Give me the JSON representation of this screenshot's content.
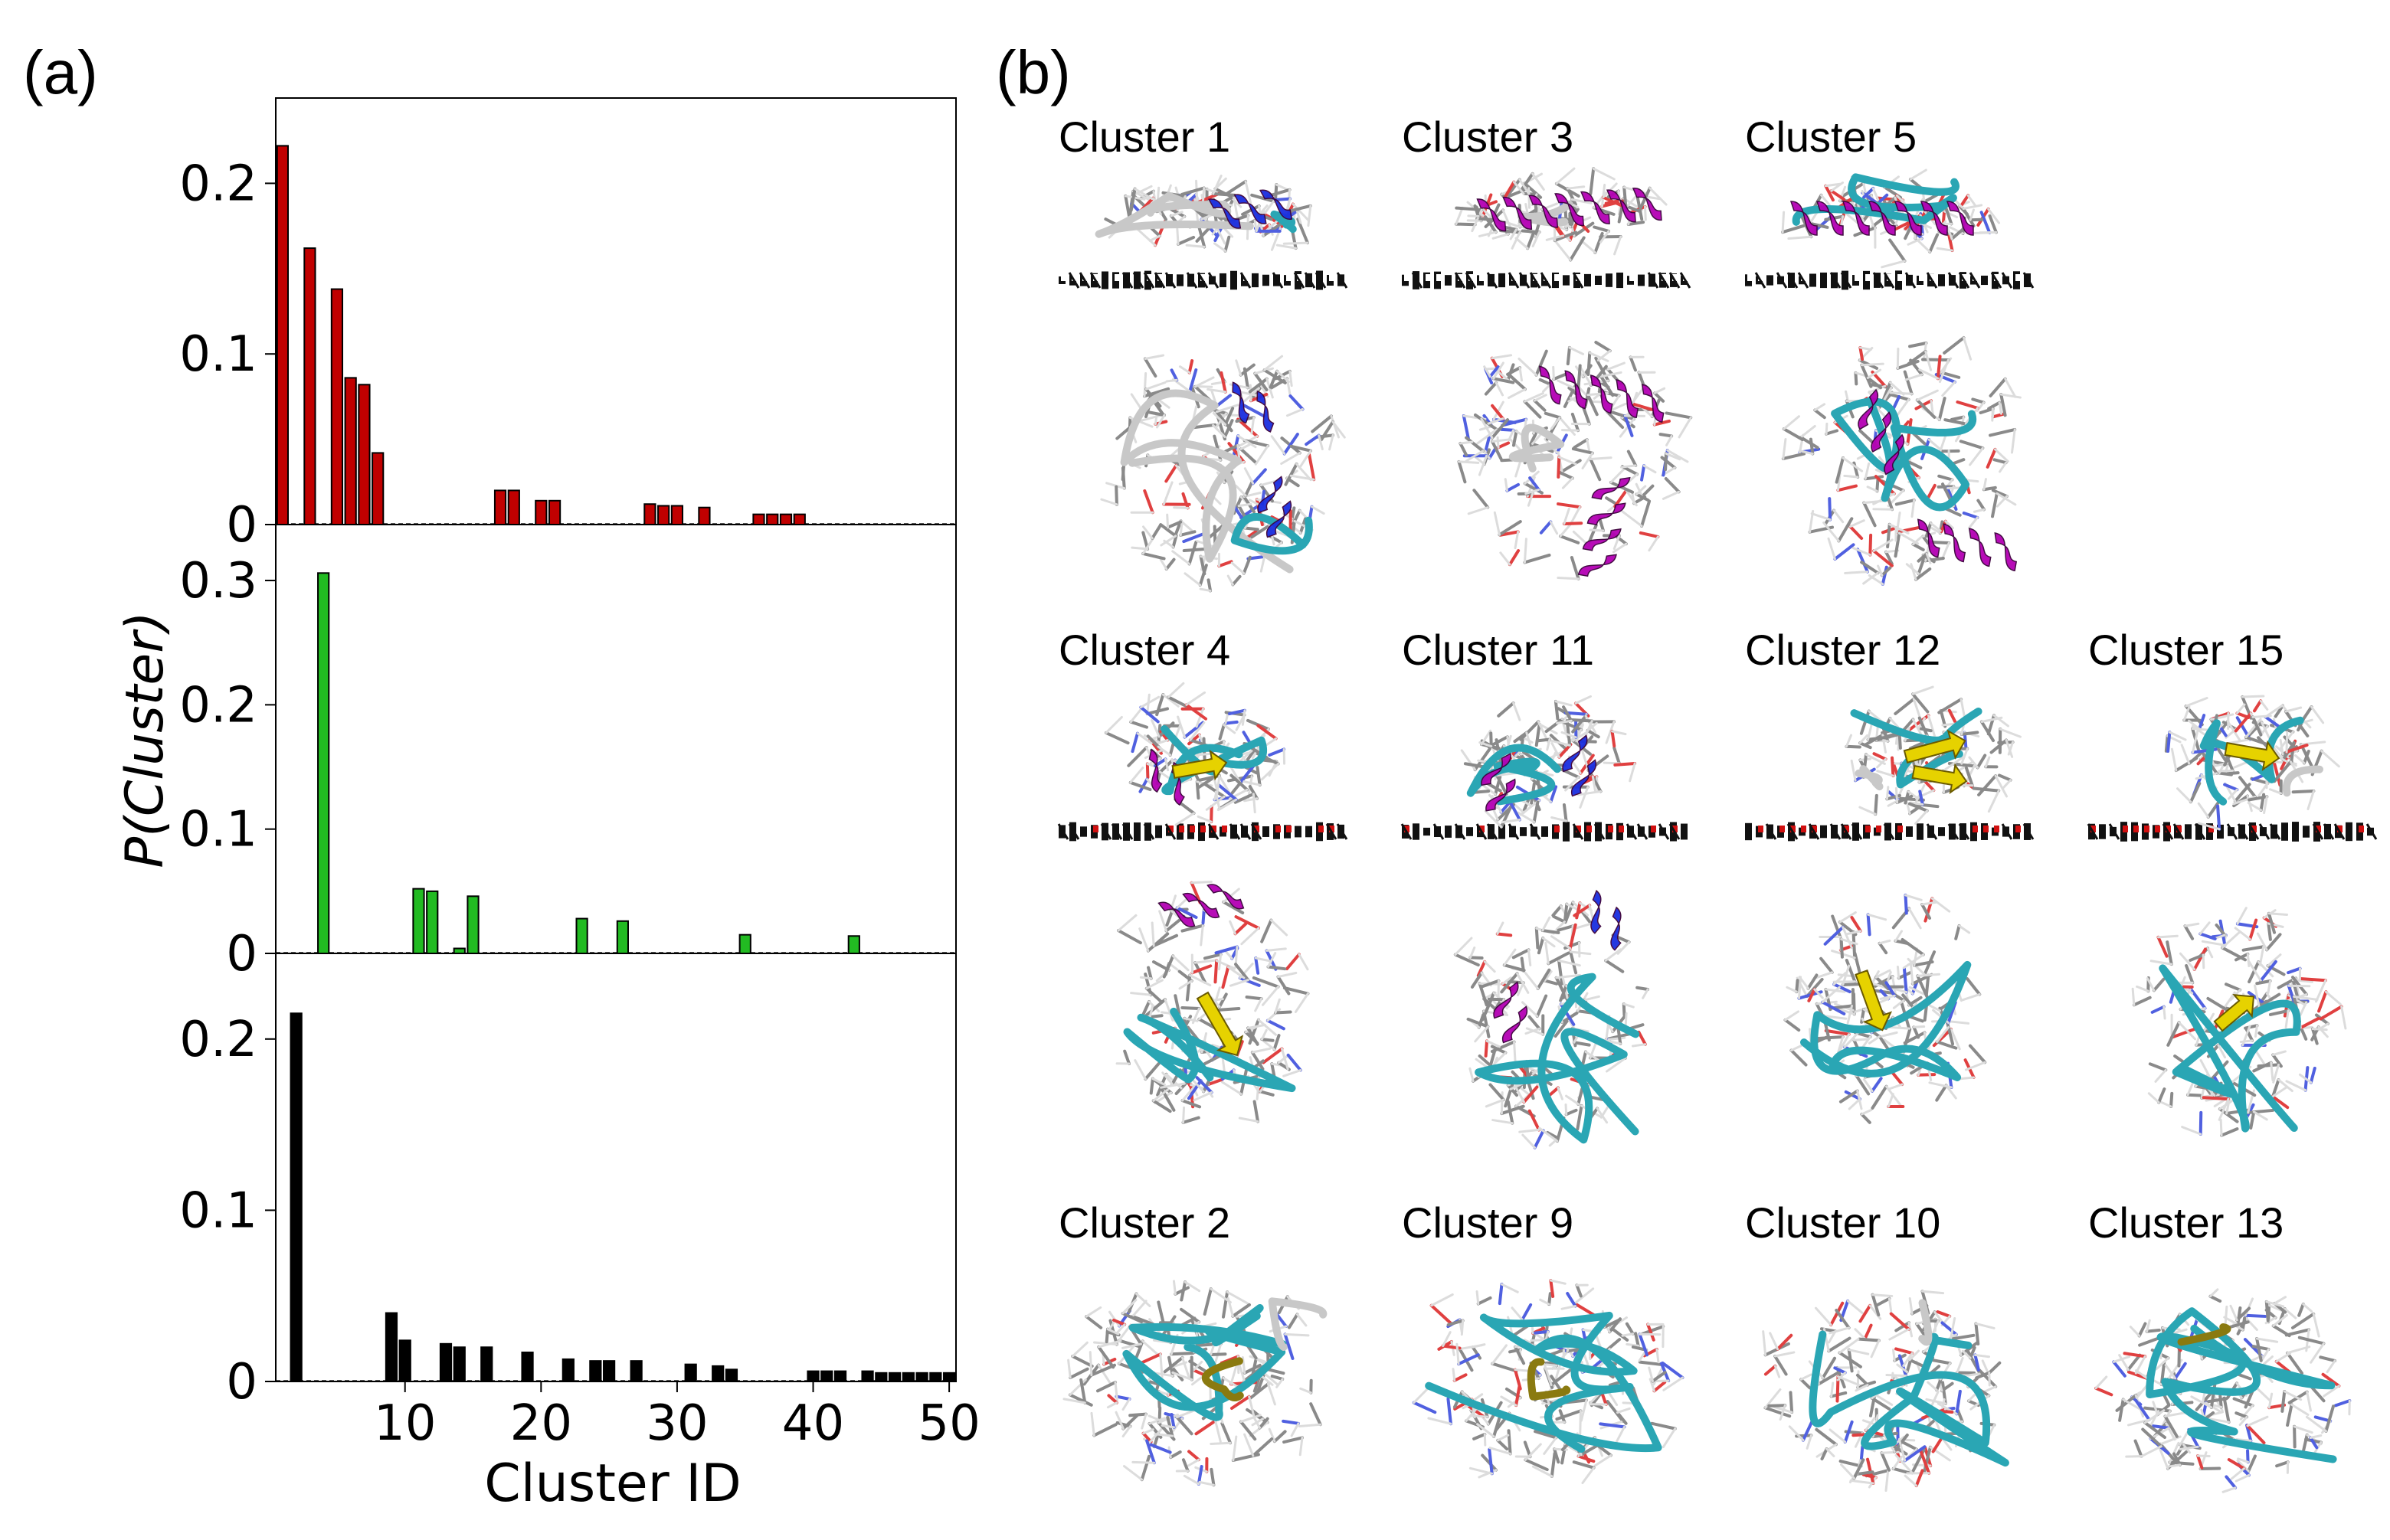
{
  "panel_a_label": "(a)",
  "panel_b_label": "(b)",
  "chart_data": [
    {
      "type": "bar",
      "color": "#c00000",
      "ylim": [
        0,
        0.25
      ],
      "yticks": [
        "0",
        "0.1",
        "0.2"
      ],
      "x": [
        1,
        3,
        5,
        6,
        7,
        8,
        17,
        18,
        20,
        21,
        28,
        29,
        30,
        32,
        36,
        37,
        38,
        39
      ],
      "values": [
        0.222,
        0.162,
        0.138,
        0.086,
        0.082,
        0.042,
        0.02,
        0.02,
        0.014,
        0.014,
        0.012,
        0.011,
        0.011,
        0.01,
        0.006,
        0.006,
        0.006,
        0.006
      ]
    },
    {
      "type": "bar",
      "color": "#22bb22",
      "ylim": [
        0,
        0.345
      ],
      "yticks": [
        "0",
        "0.1",
        "0.2",
        "0.3"
      ],
      "x": [
        4,
        11,
        12,
        14,
        15,
        23,
        26,
        35,
        43
      ],
      "values": [
        0.306,
        0.052,
        0.05,
        0.004,
        0.046,
        0.028,
        0.026,
        0.015,
        0.014
      ]
    },
    {
      "type": "bar",
      "color": "#000000",
      "ylim": [
        0,
        0.25
      ],
      "yticks": [
        "0",
        "0.1",
        "0.2"
      ],
      "x": [
        2,
        9,
        10,
        13,
        14,
        16,
        19,
        22,
        24,
        25,
        27,
        31,
        33,
        34,
        40,
        41,
        42,
        44,
        45,
        46,
        47,
        48,
        49,
        50
      ],
      "values": [
        0.215,
        0.04,
        0.024,
        0.022,
        0.02,
        0.02,
        0.017,
        0.013,
        0.012,
        0.012,
        0.012,
        0.01,
        0.009,
        0.007,
        0.006,
        0.006,
        0.006,
        0.006,
        0.005,
        0.005,
        0.005,
        0.005,
        0.005,
        0.005
      ],
      "xticks": [
        "10",
        "20",
        "30",
        "40",
        "50"
      ],
      "xlabel": "Cluster ID"
    }
  ],
  "shared_ylabel": "P(Cluster)",
  "xlim": [
    0.5,
    50.5
  ],
  "structure_colors": {
    "alpha_helix": "#b400b4",
    "three_ten_helix": "#1a2ee0",
    "beta_sheet": "#e6d200",
    "turn": "#2aa6b4",
    "coil": "#c8c8c8",
    "surface_dark": "#111111",
    "surface_red": "#d01010"
  },
  "panel_b": {
    "row1_labels": [
      "Cluster 1",
      "Cluster 3",
      "Cluster 5"
    ],
    "row2_labels": [
      "Cluster 4",
      "Cluster 11",
      "Cluster 12",
      "Cluster 15"
    ],
    "row3_labels": [
      "Cluster 2",
      "Cluster 9",
      "Cluster 10",
      "Cluster 13"
    ]
  }
}
